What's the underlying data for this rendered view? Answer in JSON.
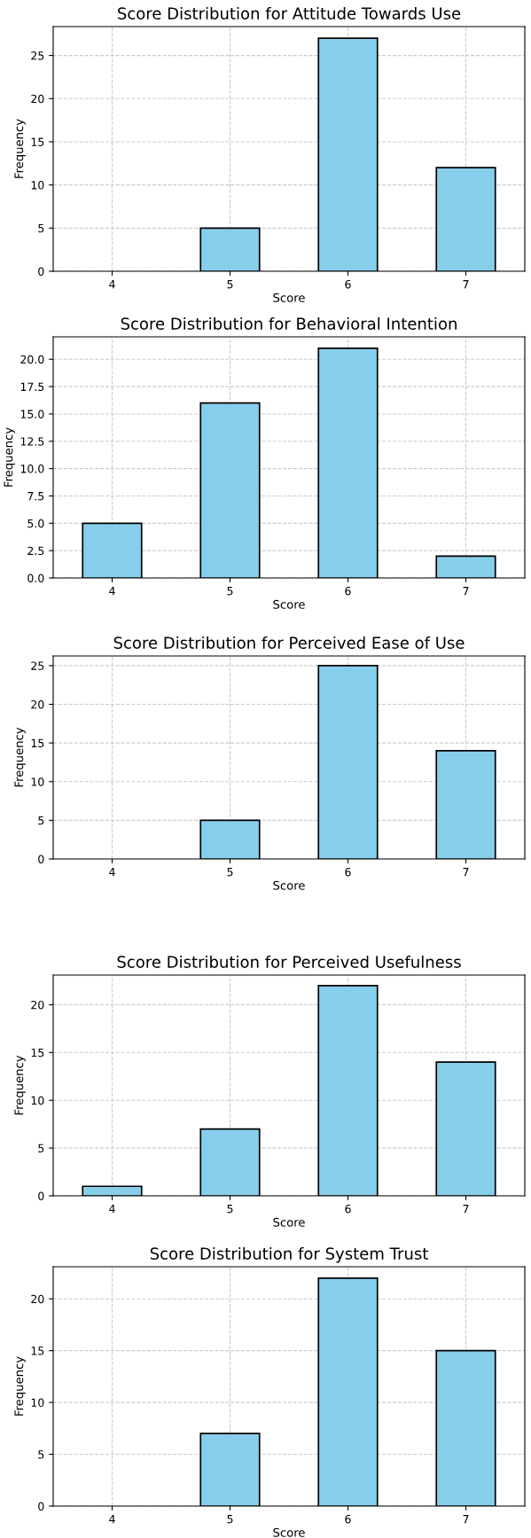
{
  "chart_data": [
    {
      "type": "bar",
      "title": "Score Distribution for Attitude Towards Use",
      "xlabel": "Score",
      "ylabel": "Frequency",
      "categories": [
        "4",
        "5",
        "6",
        "7"
      ],
      "values": [
        0,
        5,
        27,
        12
      ],
      "color": "#87ceeb",
      "ylim": [
        0,
        28.35
      ],
      "yticks": [
        0,
        5,
        10,
        15,
        20,
        25
      ],
      "grid": true
    },
    {
      "type": "bar",
      "title": "Score Distribution for Behavioral Intention",
      "xlabel": "Score",
      "ylabel": "Frequency",
      "categories": [
        "4",
        "5",
        "6",
        "7"
      ],
      "values": [
        5,
        16,
        21,
        2
      ],
      "color": "#87ceeb",
      "ylim": [
        0,
        22.05
      ],
      "yticks": [
        {
          "value": 0,
          "label": "0.0"
        },
        {
          "value": 2.5,
          "label": "2.5"
        },
        {
          "value": 5,
          "label": "5.0"
        },
        {
          "value": 7.5,
          "label": "7.5"
        },
        {
          "value": 10,
          "label": "10.0"
        },
        {
          "value": 12.5,
          "label": "12.5"
        },
        {
          "value": 15,
          "label": "15.0"
        },
        {
          "value": 17.5,
          "label": "17.5"
        },
        {
          "value": 20,
          "label": "20.0"
        }
      ],
      "grid": true
    },
    {
      "type": "bar",
      "title": "Score Distribution for Perceived Ease of Use",
      "xlabel": "Score",
      "ylabel": "Frequency",
      "categories": [
        "4",
        "5",
        "6",
        "7"
      ],
      "values": [
        0,
        5,
        25,
        14
      ],
      "color": "#87ceeb",
      "ylim": [
        0,
        26.25
      ],
      "yticks": [
        0,
        5,
        10,
        15,
        20,
        25
      ],
      "grid": true
    },
    {
      "type": "bar",
      "title": "Score Distribution for Perceived Usefulness",
      "xlabel": "Score",
      "ylabel": "Frequency",
      "categories": [
        "4",
        "5",
        "6",
        "7"
      ],
      "values": [
        1,
        7,
        22,
        14
      ],
      "color": "#87ceeb",
      "ylim": [
        0,
        23.1
      ],
      "yticks": [
        0,
        5,
        10,
        15,
        20
      ],
      "grid": true
    },
    {
      "type": "bar",
      "title": "Score Distribution for System Trust",
      "xlabel": "Score",
      "ylabel": "Frequency",
      "categories": [
        "4",
        "5",
        "6",
        "7"
      ],
      "values": [
        0,
        7,
        22,
        15
      ],
      "color": "#87ceeb",
      "ylim": [
        0,
        23.1
      ],
      "yticks": [
        0,
        5,
        10,
        15,
        20
      ],
      "grid": true
    }
  ]
}
